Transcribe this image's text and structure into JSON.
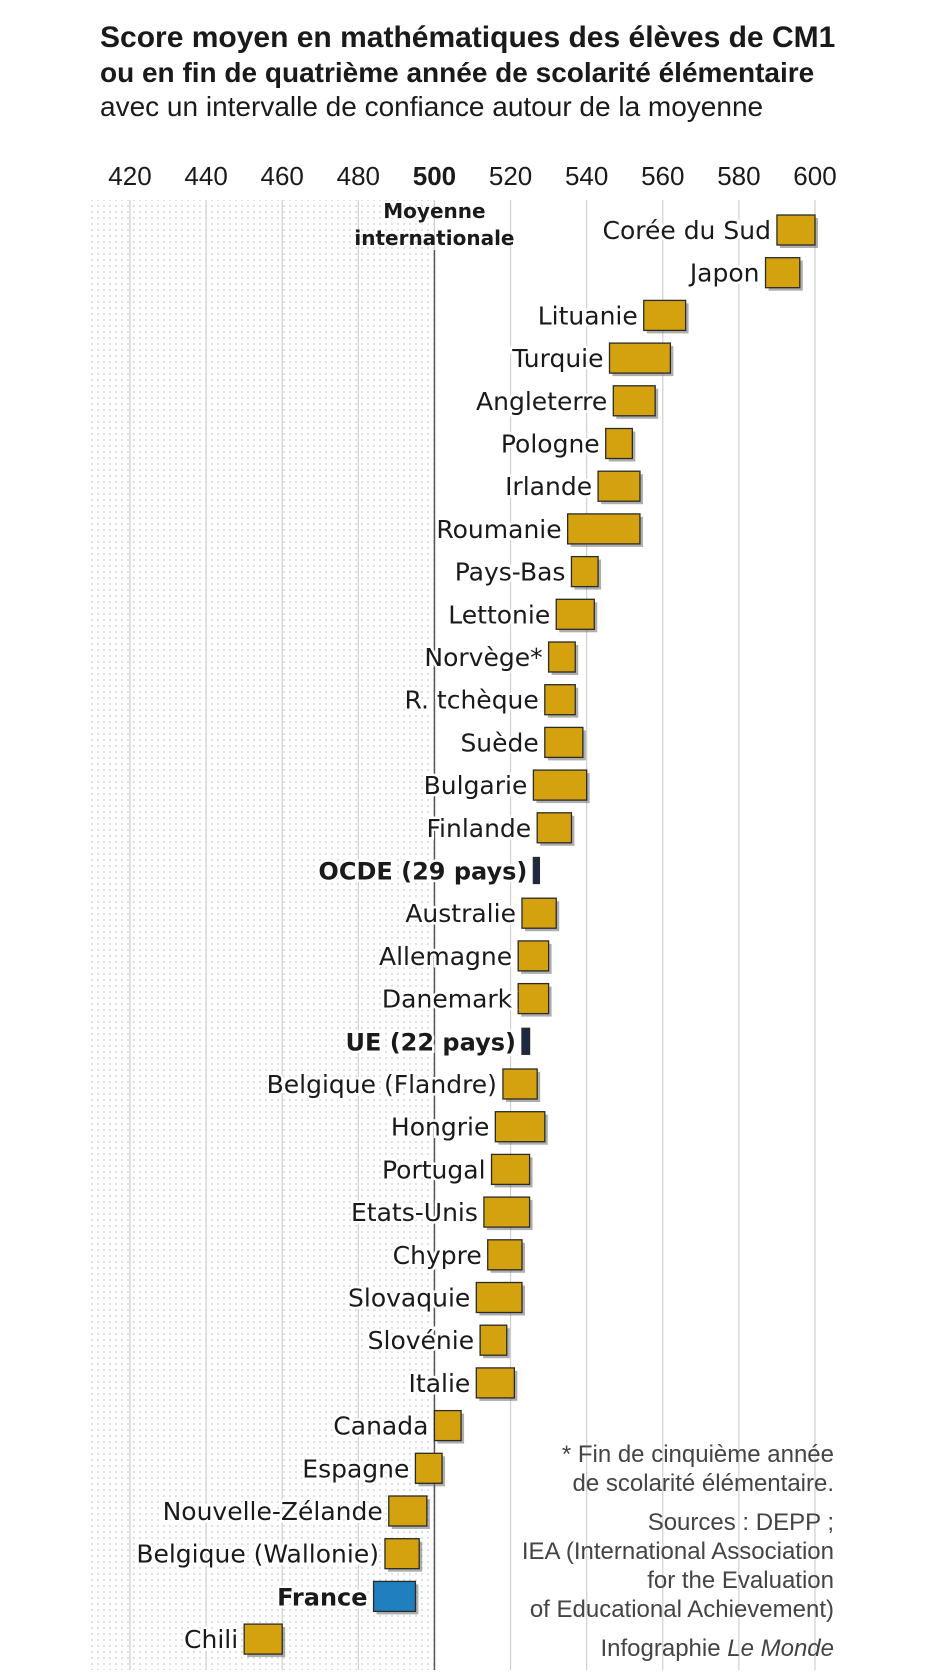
{
  "title": {
    "line1": "Score moyen en mathématiques des élèves de CM1",
    "line2": "ou en fin de quatrième année de scolarité élémentaire",
    "line3": "avec un intervalle de confiance autour de la moyenne"
  },
  "colors": {
    "bar": "#d4a20f",
    "france": "#1f7fbf",
    "aggregate": "#1c2a44",
    "shade_dots": "#c9c9c9",
    "grid": "#cfcfcf"
  },
  "chart_data": {
    "type": "scatter",
    "title": "Score moyen en mathématiques des élèves de CM1",
    "xaxis": {
      "range": [
        420,
        600
      ],
      "ticks": [
        "420",
        "440",
        "460",
        "480",
        "500",
        "520",
        "540",
        "560",
        "580",
        "600"
      ],
      "highlight_tick": "500",
      "reference_value": 500,
      "reference_label": [
        "Moyenne",
        "internationale"
      ]
    },
    "series": [
      {
        "label": "Corée du Sud",
        "low": 590,
        "high": 600,
        "style": "country"
      },
      {
        "label": "Japon",
        "low": 587,
        "high": 596,
        "style": "country"
      },
      {
        "label": "Lituanie",
        "low": 555,
        "high": 566,
        "style": "country"
      },
      {
        "label": "Turquie",
        "low": 546,
        "high": 562,
        "style": "country"
      },
      {
        "label": "Angleterre",
        "low": 547,
        "high": 558,
        "style": "country"
      },
      {
        "label": "Pologne",
        "low": 545,
        "high": 552,
        "style": "country"
      },
      {
        "label": "Irlande",
        "low": 543,
        "high": 554,
        "style": "country"
      },
      {
        "label": "Roumanie",
        "low": 535,
        "high": 554,
        "style": "country"
      },
      {
        "label": "Pays-Bas",
        "low": 536,
        "high": 543,
        "style": "country"
      },
      {
        "label": "Lettonie",
        "low": 532,
        "high": 542,
        "style": "country"
      },
      {
        "label": "Norvège*",
        "low": 530,
        "high": 537,
        "style": "country"
      },
      {
        "label": "R. tchèque",
        "low": 529,
        "high": 537,
        "style": "country"
      },
      {
        "label": "Suède",
        "low": 529,
        "high": 539,
        "style": "country"
      },
      {
        "label": "Bulgarie",
        "low": 526,
        "high": 540,
        "style": "country"
      },
      {
        "label": "Finlande",
        "low": 527,
        "high": 536,
        "style": "country"
      },
      {
        "label": "OCDE (29 pays)",
        "low": 526,
        "high": 527,
        "style": "aggregate"
      },
      {
        "label": "Australie",
        "low": 523,
        "high": 532,
        "style": "country"
      },
      {
        "label": "Allemagne",
        "low": 522,
        "high": 530,
        "style": "country"
      },
      {
        "label": "Danemark",
        "low": 522,
        "high": 530,
        "style": "country"
      },
      {
        "label": "UE (22 pays)",
        "low": 523,
        "high": 525,
        "style": "aggregate"
      },
      {
        "label": "Belgique (Flandre)",
        "low": 518,
        "high": 527,
        "style": "country"
      },
      {
        "label": "Hongrie",
        "low": 516,
        "high": 529,
        "style": "country"
      },
      {
        "label": "Portugal",
        "low": 515,
        "high": 525,
        "style": "country"
      },
      {
        "label": "Etats-Unis",
        "low": 513,
        "high": 525,
        "style": "country"
      },
      {
        "label": "Chypre",
        "low": 514,
        "high": 523,
        "style": "country"
      },
      {
        "label": "Slovaquie",
        "low": 511,
        "high": 523,
        "style": "country"
      },
      {
        "label": "Slovénie",
        "low": 512,
        "high": 519,
        "style": "country"
      },
      {
        "label": "Italie",
        "low": 511,
        "high": 521,
        "style": "country"
      },
      {
        "label": "Canada",
        "low": 500,
        "high": 507,
        "style": "country"
      },
      {
        "label": "Espagne",
        "low": 495,
        "high": 502,
        "style": "country"
      },
      {
        "label": "Nouvelle-Zélande",
        "low": 488,
        "high": 498,
        "style": "country"
      },
      {
        "label": "Belgique (Wallonie)",
        "low": 487,
        "high": 496,
        "style": "country"
      },
      {
        "label": "France",
        "low": 484,
        "high": 495,
        "style": "highlight"
      },
      {
        "label": "Chili",
        "low": 450,
        "high": 460,
        "style": "country"
      }
    ]
  },
  "notes": {
    "footnote_line1": "* Fin de cinquième année",
    "footnote_line2": "de scolarité élémentaire.",
    "sources_line1": "Sources : DEPP ;",
    "sources_line2": "IEA (International Association",
    "sources_line3": "for the Evaluation",
    "sources_line4": "of Educational Achievement)",
    "credit_prefix": "Infographie",
    "credit_name": "Le Monde"
  }
}
